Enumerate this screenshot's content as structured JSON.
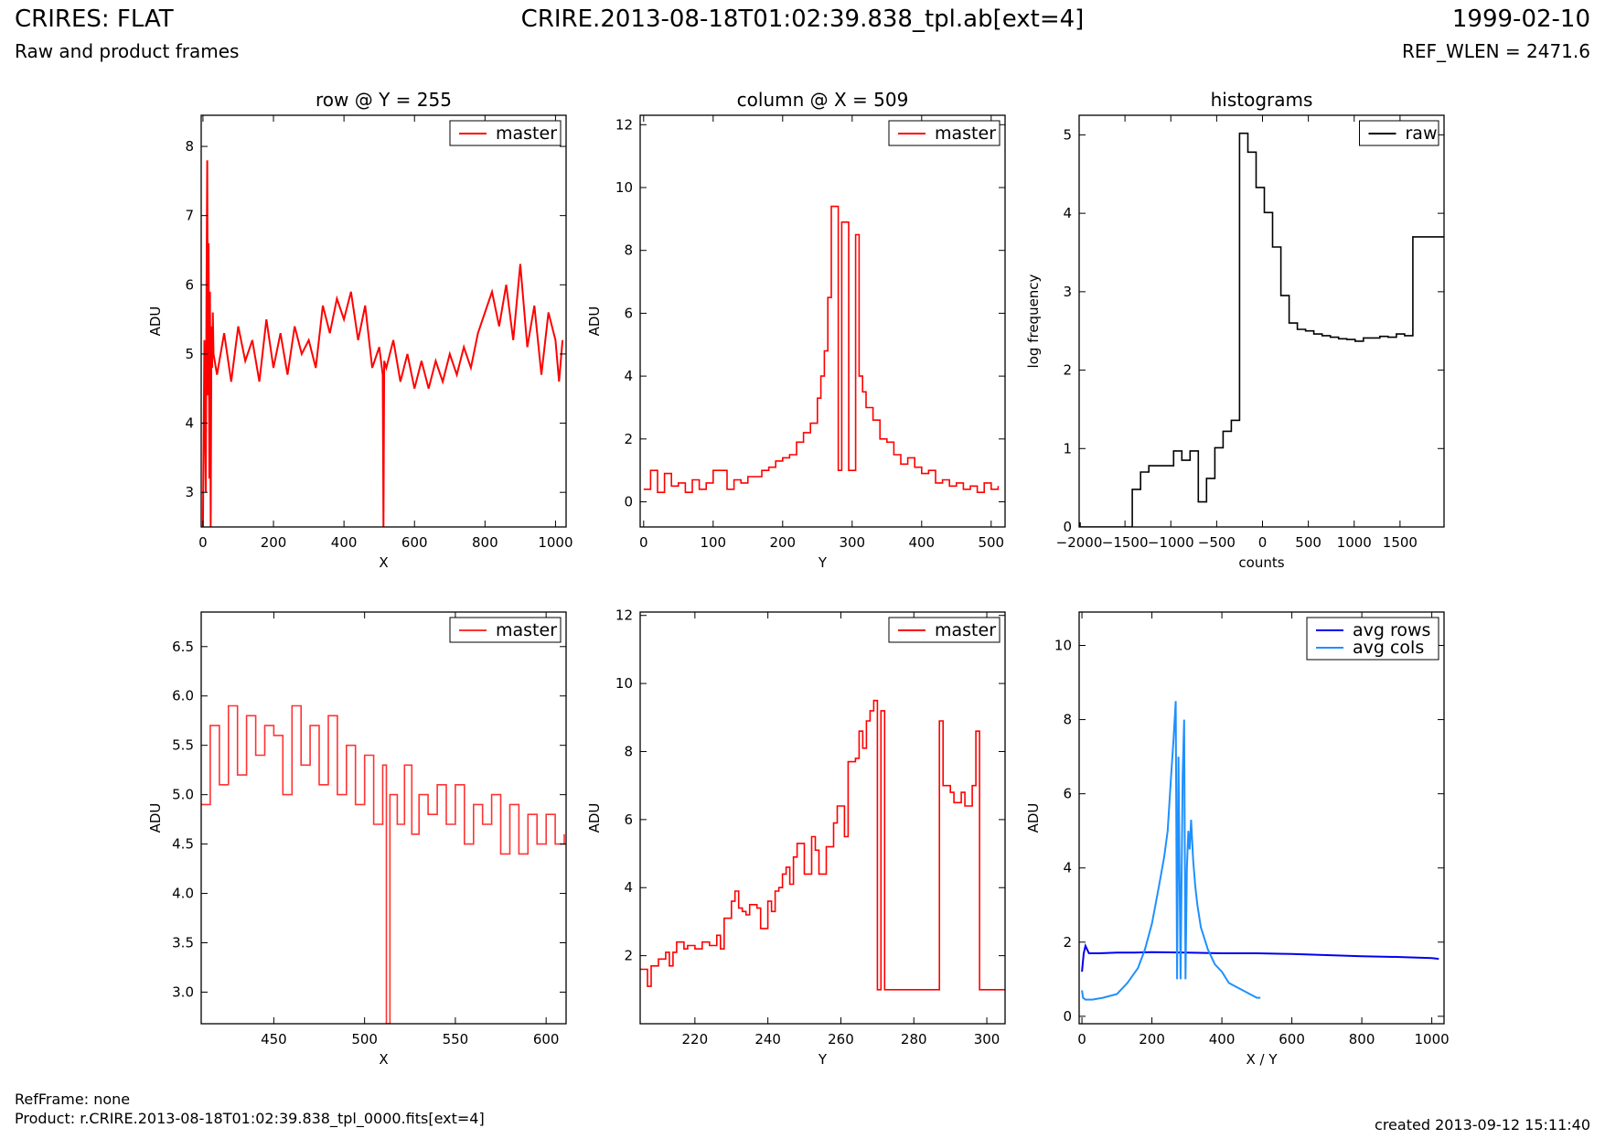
{
  "header": {
    "title_left": "CRIRES: FLAT",
    "subtitle_left": "Raw and product frames",
    "title_center": "CRIRE.2013-08-18T01:02:39.838_tpl.ab[ext=4]",
    "title_right": "1999-02-10",
    "subtitle_right": "REF_WLEN = 2471.6"
  },
  "footer": {
    "refframe": "RefFrame: none",
    "product": "Product: r.CRIRE.2013-08-18T01:02:39.838_tpl_0000.fits[ext=4]",
    "created": "created 2013-09-12 15:11:40"
  },
  "chart_data": [
    {
      "id": "p1",
      "type": "line",
      "title": "row @ Y = 255",
      "xlabel": "X",
      "ylabel": "ADU",
      "xlim": [
        -5,
        1030
      ],
      "ylim": [
        2.5,
        8.45
      ],
      "xticks": [
        0,
        200,
        400,
        600,
        800,
        1000
      ],
      "yticks": [
        3,
        4,
        5,
        6,
        7,
        8
      ],
      "legend_loc": "upper right",
      "series": [
        {
          "name": "master",
          "color": "#ff0000",
          "step": false,
          "x": [
            0,
            4,
            8,
            10,
            12,
            14,
            16,
            18,
            20,
            22,
            24,
            26,
            28,
            30,
            40,
            60,
            80,
            100,
            120,
            140,
            160,
            180,
            200,
            220,
            240,
            260,
            280,
            300,
            320,
            340,
            360,
            380,
            400,
            420,
            440,
            460,
            480,
            500,
            510,
            512,
            514,
            520,
            540,
            560,
            580,
            600,
            620,
            640,
            660,
            680,
            700,
            720,
            740,
            760,
            780,
            800,
            820,
            840,
            860,
            880,
            900,
            920,
            940,
            960,
            980,
            1000,
            1010,
            1020
          ],
          "y": [
            2.5,
            5.2,
            3.0,
            5.9,
            7.8,
            4.4,
            6.6,
            3.2,
            5.9,
            2.5,
            5.4,
            4.8,
            5.6,
            5.0,
            4.7,
            5.3,
            4.6,
            5.4,
            4.9,
            5.2,
            4.6,
            5.5,
            4.8,
            5.3,
            4.7,
            5.4,
            5.0,
            5.2,
            4.8,
            5.7,
            5.3,
            5.8,
            5.5,
            5.9,
            5.2,
            5.7,
            4.8,
            5.1,
            4.7,
            2.5,
            4.9,
            4.8,
            5.2,
            4.6,
            5.0,
            4.5,
            4.9,
            4.5,
            4.9,
            4.6,
            5.0,
            4.7,
            5.1,
            4.8,
            5.3,
            5.6,
            5.9,
            5.4,
            6.0,
            5.2,
            6.3,
            5.1,
            5.7,
            4.7,
            5.6,
            5.2,
            4.6,
            5.2
          ]
        }
      ]
    },
    {
      "id": "p2",
      "type": "line",
      "title": "column @ X = 509",
      "xlabel": "Y",
      "ylabel": "ADU",
      "xlim": [
        -5,
        520
      ],
      "ylim": [
        -0.8,
        12.3
      ],
      "xticks": [
        0,
        100,
        200,
        300,
        400,
        500
      ],
      "yticks": [
        0,
        2,
        4,
        6,
        8,
        10,
        12
      ],
      "legend_loc": "upper right",
      "series": [
        {
          "name": "master",
          "color": "#ff0000",
          "step": true,
          "x": [
            0,
            10,
            20,
            30,
            40,
            50,
            60,
            70,
            80,
            90,
            100,
            110,
            120,
            130,
            140,
            150,
            160,
            170,
            180,
            190,
            200,
            210,
            220,
            230,
            240,
            250,
            255,
            260,
            265,
            270,
            280,
            285,
            295,
            305,
            310,
            315,
            320,
            330,
            340,
            350,
            360,
            370,
            380,
            390,
            400,
            410,
            420,
            430,
            440,
            450,
            460,
            470,
            480,
            490,
            500,
            510
          ],
          "y": [
            0.4,
            1.0,
            0.3,
            0.9,
            0.5,
            0.6,
            0.3,
            0.7,
            0.4,
            0.6,
            1.0,
            1.0,
            0.4,
            0.7,
            0.6,
            0.8,
            0.8,
            1.0,
            1.1,
            1.3,
            1.4,
            1.5,
            1.9,
            2.2,
            2.5,
            3.3,
            4.0,
            4.8,
            6.5,
            9.4,
            1.0,
            8.9,
            1.0,
            8.5,
            4.0,
            3.5,
            3.0,
            2.6,
            2.0,
            1.9,
            1.5,
            1.2,
            1.4,
            1.1,
            0.9,
            1.0,
            0.6,
            0.7,
            0.5,
            0.6,
            0.4,
            0.5,
            0.3,
            0.6,
            0.4,
            0.5
          ]
        }
      ]
    },
    {
      "id": "p3",
      "type": "line",
      "title": "histograms",
      "xlabel": "counts",
      "ylabel": "log frequency",
      "xlim": [
        -2000,
        1980
      ],
      "ylim": [
        0,
        5.25
      ],
      "xticks": [
        -2000,
        -1500,
        -1000,
        -500,
        0,
        500,
        1000,
        1500
      ],
      "xtick_labels": [
        "−2000",
        "−1500",
        "−1000",
        "−500",
        "0",
        "500",
        "1000",
        "1500"
      ],
      "yticks": [
        0,
        1,
        2,
        3,
        4,
        5
      ],
      "legend_loc": "upper right",
      "series": [
        {
          "name": "raw",
          "color": "#000000",
          "step": true,
          "x": [
            -2000,
            -1990,
            -1420,
            -1330,
            -1240,
            -1150,
            -1060,
            -970,
            -880,
            -790,
            -700,
            -610,
            -520,
            -430,
            -340,
            -250,
            -160,
            -70,
            20,
            110,
            200,
            290,
            380,
            470,
            560,
            650,
            740,
            830,
            920,
            1010,
            1100,
            1190,
            1280,
            1370,
            1460,
            1550,
            1640,
            1730,
            1820,
            1910,
            1980
          ],
          "y": [
            0.05,
            0,
            0.48,
            0.7,
            0.78,
            0.78,
            0.78,
            0.97,
            0.85,
            0.97,
            0.32,
            0.62,
            1.01,
            1.22,
            1.36,
            5.02,
            4.78,
            4.33,
            4.01,
            3.57,
            2.95,
            2.6,
            2.52,
            2.5,
            2.46,
            2.44,
            2.42,
            2.4,
            2.39,
            2.37,
            2.41,
            2.41,
            2.43,
            2.42,
            2.46,
            2.44,
            3.7,
            3.7,
            3.7,
            3.7,
            3.7
          ]
        }
      ]
    },
    {
      "id": "p4",
      "type": "line",
      "title": "",
      "xlabel": "X",
      "ylabel": "ADU",
      "xlim": [
        410,
        611
      ],
      "ylim": [
        2.68,
        6.85
      ],
      "xticks": [
        450,
        500,
        550,
        600
      ],
      "yticks": [
        3.0,
        3.5,
        4.0,
        4.5,
        5.0,
        5.5,
        6.0,
        6.5
      ],
      "ytick_labels": [
        "3.0",
        "3.5",
        "4.0",
        "4.5",
        "5.0",
        "5.5",
        "6.0",
        "6.5"
      ],
      "legend_loc": "upper right",
      "series": [
        {
          "name": "master",
          "color": "#ff3333",
          "step": true,
          "x": [
            410,
            415,
            420,
            425,
            430,
            435,
            440,
            445,
            450,
            455,
            460,
            465,
            470,
            475,
            480,
            485,
            490,
            495,
            500,
            505,
            510,
            512,
            514,
            518,
            522,
            526,
            530,
            535,
            540,
            545,
            550,
            555,
            560,
            565,
            570,
            575,
            580,
            585,
            590,
            595,
            600,
            605,
            610
          ],
          "y": [
            4.9,
            5.7,
            5.1,
            5.9,
            5.2,
            5.8,
            5.4,
            5.7,
            5.6,
            5.0,
            5.9,
            5.3,
            5.7,
            5.1,
            5.8,
            5.0,
            5.5,
            4.9,
            5.4,
            4.7,
            5.3,
            2.68,
            5.0,
            4.7,
            5.3,
            4.6,
            5.0,
            4.8,
            5.1,
            4.7,
            5.1,
            4.5,
            4.9,
            4.7,
            5.0,
            4.4,
            4.9,
            4.4,
            4.8,
            4.5,
            4.8,
            4.5,
            4.6
          ]
        }
      ]
    },
    {
      "id": "p5",
      "type": "line",
      "title": "",
      "xlabel": "Y",
      "ylabel": "ADU",
      "xlim": [
        205,
        305
      ],
      "ylim": [
        0.0,
        12.1
      ],
      "xticks": [
        220,
        240,
        260,
        280,
        300
      ],
      "yticks": [
        2,
        4,
        6,
        8,
        10,
        12
      ],
      "legend_loc": "upper right",
      "series": [
        {
          "name": "master",
          "color": "#ff0000",
          "step": true,
          "x": [
            205,
            207,
            208,
            210,
            212,
            213,
            214,
            215,
            217,
            218,
            220,
            222,
            224,
            226,
            227,
            228,
            230,
            231,
            232,
            233,
            234,
            235,
            237,
            238,
            240,
            241,
            242,
            243,
            244,
            245,
            246,
            247,
            248,
            250,
            252,
            253,
            254,
            256,
            258,
            259,
            260,
            261,
            262,
            264,
            265,
            266,
            267,
            268,
            269,
            270,
            271,
            272,
            287,
            288,
            290,
            291,
            293,
            294,
            296,
            297,
            298,
            305
          ],
          "y": [
            1.6,
            1.1,
            1.7,
            1.9,
            2.1,
            1.7,
            2.1,
            2.4,
            2.2,
            2.3,
            2.2,
            2.4,
            2.3,
            2.6,
            2.2,
            3.1,
            3.6,
            3.9,
            3.4,
            3.3,
            3.2,
            3.5,
            3.4,
            2.8,
            3.6,
            3.3,
            3.9,
            4.0,
            4.4,
            4.6,
            4.1,
            4.9,
            5.3,
            4.4,
            5.5,
            5.1,
            4.4,
            5.2,
            5.9,
            6.4,
            6.4,
            5.5,
            7.7,
            7.8,
            8.6,
            8.1,
            8.9,
            9.2,
            9.5,
            1.0,
            9.2,
            1.0,
            8.9,
            7.0,
            6.8,
            6.5,
            6.8,
            6.4,
            7.0,
            8.6,
            1.0,
            1.0
          ]
        }
      ]
    },
    {
      "id": "p6",
      "type": "line",
      "title": "",
      "xlabel": "X / Y",
      "ylabel": "ADU",
      "xlim": [
        -8,
        1035
      ],
      "ylim": [
        -0.2,
        10.9
      ],
      "xticks": [
        0,
        200,
        400,
        600,
        800,
        1000
      ],
      "yticks": [
        0,
        2,
        4,
        6,
        8,
        10
      ],
      "legend_loc": "upper right",
      "series": [
        {
          "name": "avg rows",
          "color": "#0000ee",
          "step": false,
          "x": [
            0,
            5,
            10,
            15,
            20,
            30,
            50,
            100,
            150,
            200,
            300,
            400,
            500,
            600,
            700,
            800,
            900,
            1000,
            1020
          ],
          "y": [
            1.2,
            1.7,
            1.9,
            1.8,
            1.7,
            1.7,
            1.7,
            1.72,
            1.72,
            1.73,
            1.72,
            1.7,
            1.7,
            1.68,
            1.65,
            1.62,
            1.6,
            1.57,
            1.55
          ]
        },
        {
          "name": "avg cols",
          "color": "#1e90ff",
          "step": false,
          "x": [
            0,
            3,
            10,
            30,
            60,
            100,
            130,
            160,
            180,
            200,
            220,
            235,
            245,
            255,
            262,
            268,
            272,
            276,
            282,
            288,
            292,
            296,
            300,
            304,
            308,
            312,
            318,
            324,
            330,
            340,
            360,
            380,
            400,
            420,
            440,
            460,
            480,
            500,
            510
          ],
          "y": [
            0.7,
            0.5,
            0.45,
            0.45,
            0.5,
            0.6,
            0.9,
            1.3,
            1.8,
            2.5,
            3.5,
            4.3,
            5.0,
            6.5,
            7.5,
            8.5,
            1.0,
            7.0,
            1.0,
            6.5,
            8.0,
            1.0,
            4.0,
            5.0,
            4.5,
            5.3,
            4.2,
            3.5,
            3.0,
            2.4,
            1.8,
            1.4,
            1.2,
            0.9,
            0.8,
            0.7,
            0.6,
            0.5,
            0.5
          ]
        }
      ]
    }
  ]
}
